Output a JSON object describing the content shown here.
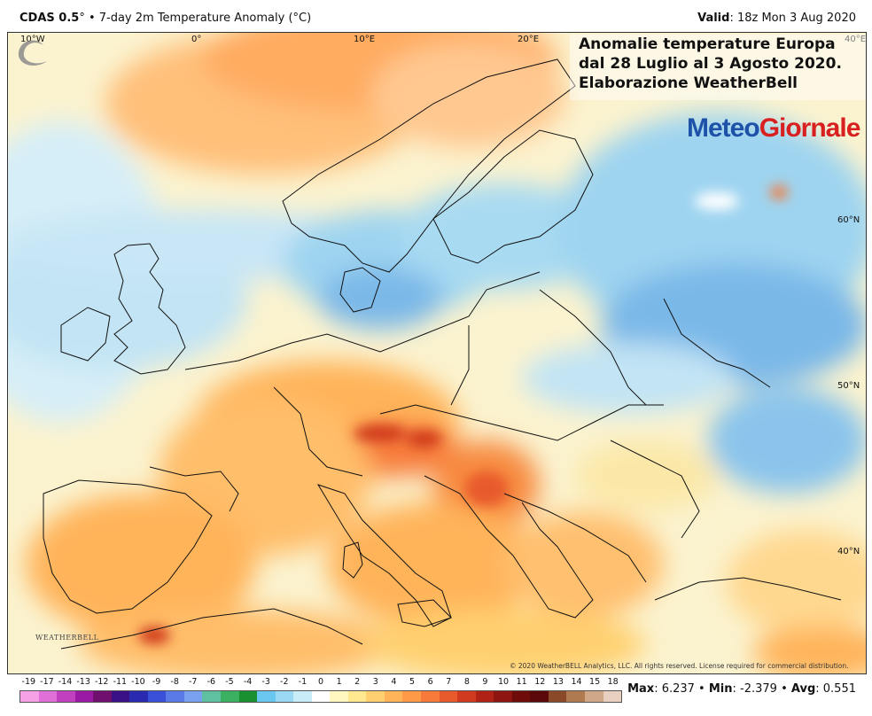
{
  "header": {
    "product": "CDAS 0.5",
    "product_suffix": "°",
    "description": " • 7-day 2m Temperature Anomaly (°C)",
    "valid_label": "Valid",
    "valid_value": ": 18z Mon 3 Aug 2020"
  },
  "overlay": {
    "line1": "Anomalie temperature Europa",
    "line2": "dal 28 Luglio al 3 Agosto 2020.",
    "line3": "Elaborazione WeatherBell"
  },
  "logo": {
    "meteo": "Meteo",
    "giornale": "Giornale",
    "meteo_color": "#1e52a8",
    "giornale_color": "#d82020"
  },
  "watermark": "WEATHERBELL",
  "copyright": "© 2020 WeatherBELL Analytics, LLC. All rights reserved. License required for commercial distribution.",
  "longitudes": [
    "10°W",
    "0°",
    "10°E",
    "20°E",
    "40°E"
  ],
  "latitudes": [
    "60°N",
    "50°N",
    "40°N"
  ],
  "legend": {
    "ticks": [
      "-19",
      "-17",
      "-14",
      "-13",
      "-12",
      "-11",
      "-10",
      "-9",
      "-8",
      "-7",
      "-6",
      "-5",
      "-4",
      "-3",
      "-2",
      "-1",
      "0",
      "1",
      "2",
      "3",
      "4",
      "5",
      "6",
      "7",
      "8",
      "9",
      "10",
      "11",
      "12",
      "13",
      "14",
      "15",
      "18"
    ],
    "colors": [
      "#f6a0e6",
      "#e070d8",
      "#c040c0",
      "#9a1aa6",
      "#70106e",
      "#3a1086",
      "#2a2ab0",
      "#3a50d8",
      "#5a7ae8",
      "#7aa0f0",
      "#5ec0a0",
      "#3ab060",
      "#1a9030",
      "#6ac8f0",
      "#9ad8f4",
      "#c8ecf8",
      "#ffffff",
      "#fff6c0",
      "#ffe890",
      "#ffd070",
      "#ffb45a",
      "#ff9a48",
      "#f77a3a",
      "#e85a2c",
      "#d03a1e",
      "#b02216",
      "#8e1410",
      "#6e0c0a",
      "#5a0808",
      "#8a4a2a",
      "#b07a50",
      "#d0a888",
      "#e8cfc0"
    ]
  },
  "stats": {
    "max_label": "Max",
    "max_value": ": 6.237 • ",
    "min_label": "Min",
    "min_value": ": -2.379 • ",
    "avg_label": "Avg",
    "avg_value": ": 0.551"
  }
}
